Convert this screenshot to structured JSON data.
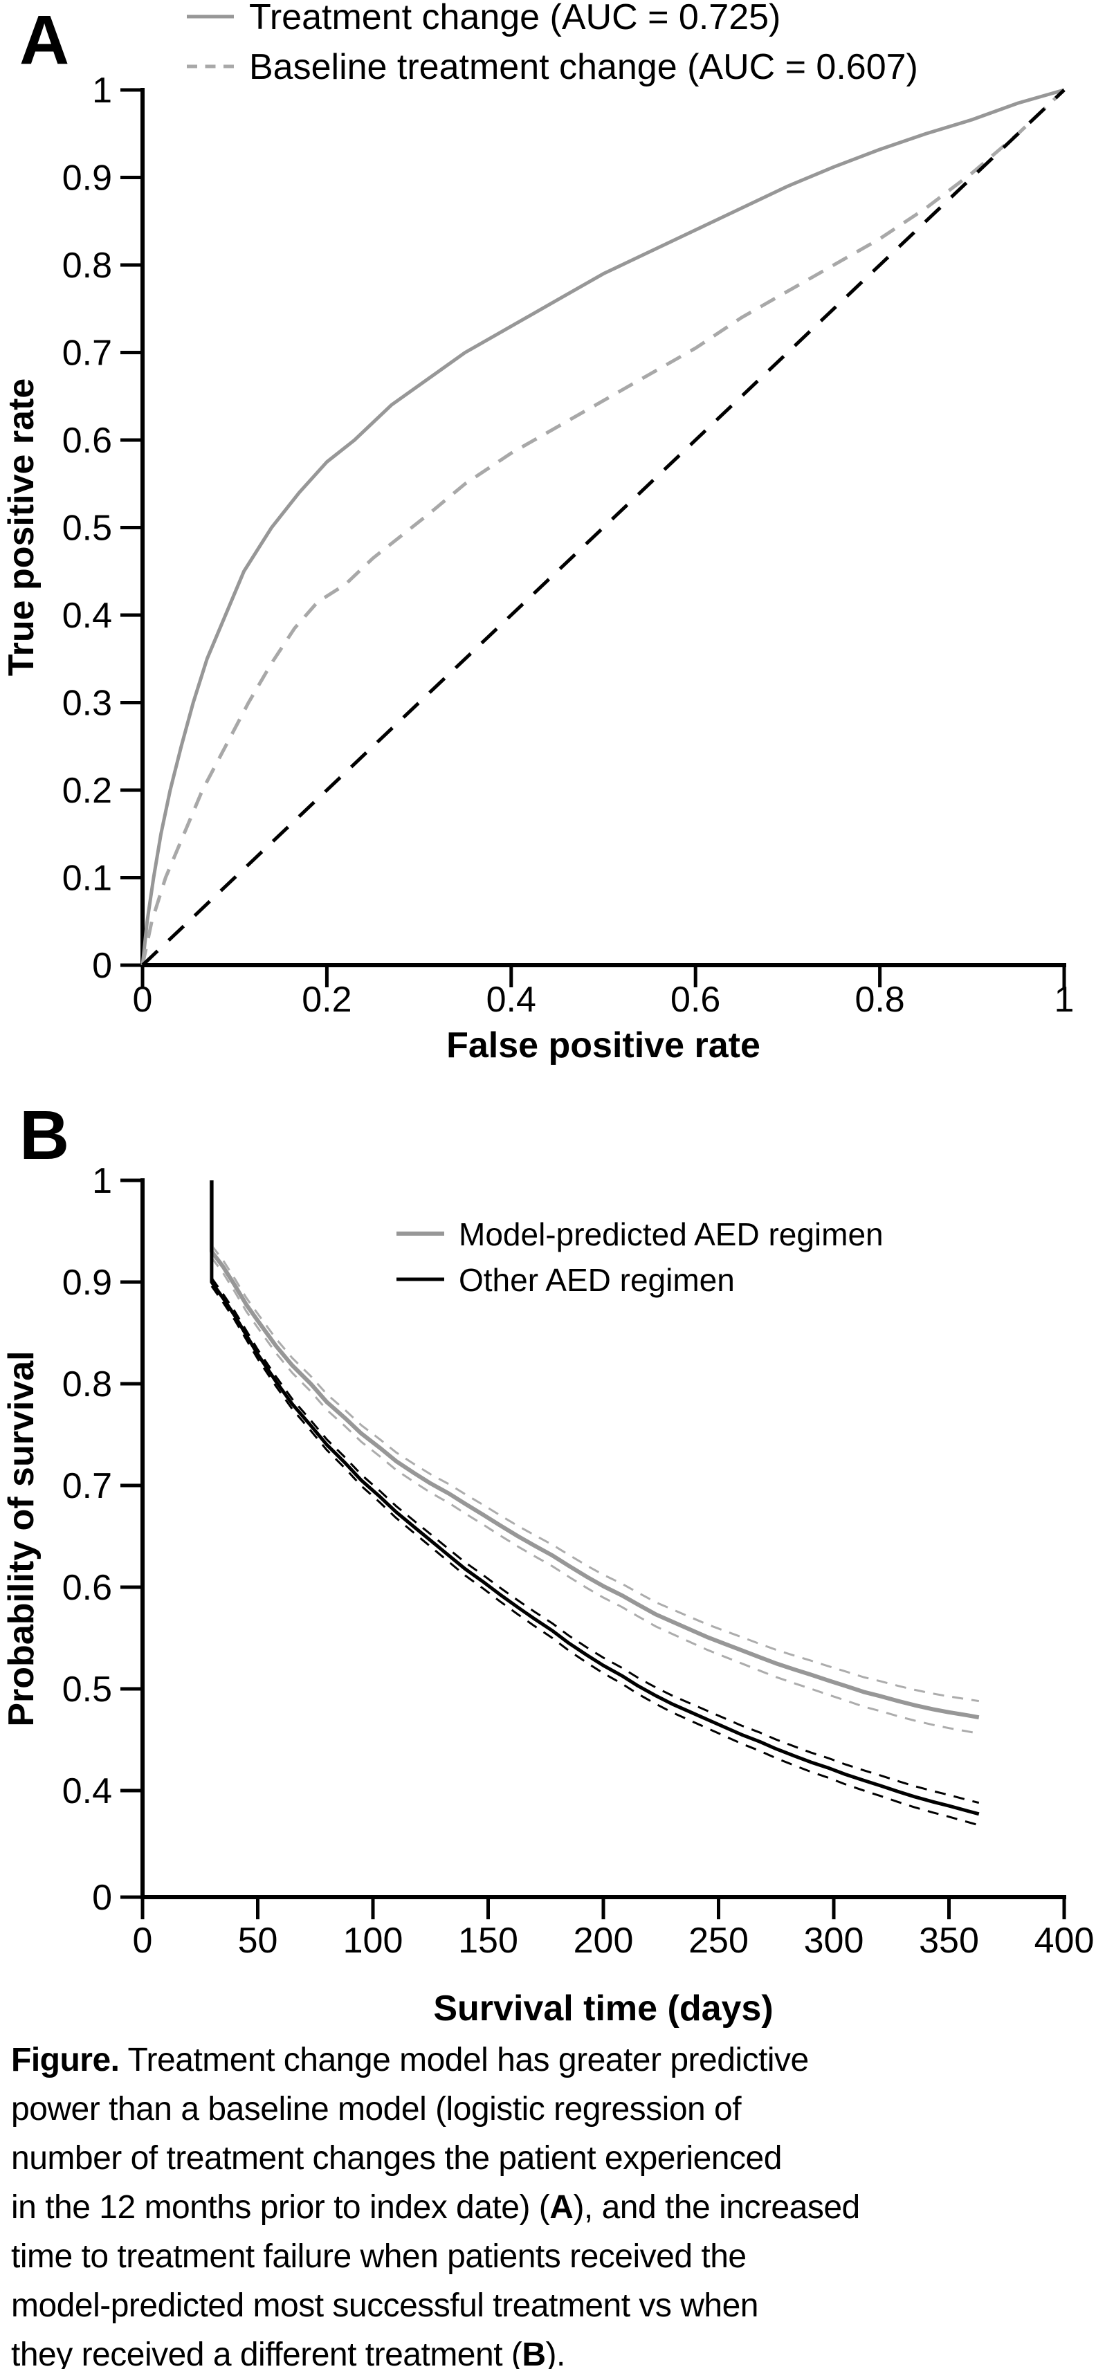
{
  "panels": {
    "a": {
      "letter": "A"
    },
    "b": {
      "letter": "B"
    }
  },
  "chart_data": [
    {
      "id": "roc",
      "type": "line",
      "title": "",
      "xlabel": "False positive rate",
      "ylabel": "True positive rate",
      "xlim": [
        0,
        1
      ],
      "ylim": [
        0,
        1
      ],
      "grid": false,
      "legend_position": "top-left-above-plot",
      "xtick_values": [
        0,
        0.2,
        0.4,
        0.6,
        0.8,
        1
      ],
      "xtick_labels": [
        "0",
        "0.2",
        "0.4",
        "0.6",
        "0.8",
        "1"
      ],
      "ytick_values": [
        0,
        0.1,
        0.2,
        0.3,
        0.4,
        0.5,
        0.6,
        0.7,
        0.8,
        0.9,
        1
      ],
      "ytick_labels": [
        "0",
        "0.1",
        "0.2",
        "0.3",
        "0.4",
        "0.5",
        "0.6",
        "0.7",
        "0.8",
        "0.9",
        "1"
      ],
      "series": [
        {
          "name": "Treatment change (AUC = 0.725)",
          "auc": 0.725,
          "style": "solid",
          "color": "#979797",
          "points": [
            [
              0,
              0
            ],
            [
              0.005,
              0.05
            ],
            [
              0.012,
              0.1
            ],
            [
              0.02,
              0.15
            ],
            [
              0.03,
              0.2
            ],
            [
              0.042,
              0.25
            ],
            [
              0.055,
              0.3
            ],
            [
              0.07,
              0.35
            ],
            [
              0.09,
              0.4
            ],
            [
              0.11,
              0.45
            ],
            [
              0.14,
              0.5
            ],
            [
              0.17,
              0.54
            ],
            [
              0.2,
              0.575
            ],
            [
              0.23,
              0.6
            ],
            [
              0.27,
              0.64
            ],
            [
              0.31,
              0.67
            ],
            [
              0.35,
              0.7
            ],
            [
              0.4,
              0.73
            ],
            [
              0.45,
              0.76
            ],
            [
              0.5,
              0.79
            ],
            [
              0.55,
              0.815
            ],
            [
              0.6,
              0.84
            ],
            [
              0.65,
              0.865
            ],
            [
              0.7,
              0.89
            ],
            [
              0.75,
              0.912
            ],
            [
              0.8,
              0.932
            ],
            [
              0.85,
              0.95
            ],
            [
              0.9,
              0.966
            ],
            [
              0.95,
              0.985
            ],
            [
              1,
              1
            ]
          ]
        },
        {
          "name": "Baseline treatment change (AUC = 0.607)",
          "auc": 0.607,
          "style": "dashed",
          "color": "#a8a8a8",
          "points": [
            [
              0,
              0
            ],
            [
              0.01,
              0.05
            ],
            [
              0.025,
              0.1
            ],
            [
              0.045,
              0.15
            ],
            [
              0.065,
              0.2
            ],
            [
              0.09,
              0.25
            ],
            [
              0.115,
              0.3
            ],
            [
              0.14,
              0.345
            ],
            [
              0.165,
              0.385
            ],
            [
              0.19,
              0.415
            ],
            [
              0.22,
              0.435
            ],
            [
              0.25,
              0.465
            ],
            [
              0.28,
              0.49
            ],
            [
              0.31,
              0.515
            ],
            [
              0.35,
              0.55
            ],
            [
              0.4,
              0.585
            ],
            [
              0.45,
              0.615
            ],
            [
              0.5,
              0.645
            ],
            [
              0.55,
              0.675
            ],
            [
              0.6,
              0.705
            ],
            [
              0.65,
              0.74
            ],
            [
              0.7,
              0.77
            ],
            [
              0.75,
              0.8
            ],
            [
              0.8,
              0.83
            ],
            [
              0.85,
              0.865
            ],
            [
              0.9,
              0.905
            ],
            [
              0.95,
              0.95
            ],
            [
              1,
              1
            ]
          ]
        },
        {
          "name": "chance-diagonal",
          "style": "dashed",
          "color": "#000000",
          "points": [
            [
              0,
              0
            ],
            [
              1,
              1
            ]
          ]
        }
      ]
    },
    {
      "id": "km",
      "type": "line",
      "title": "",
      "xlabel": "Survival time (days)",
      "ylabel": "Probability of survival",
      "xlim": [
        0,
        400
      ],
      "ylim": [
        0,
        1
      ],
      "y_axis_note": "broken axis: 0.4 to 1 linear, 0 shown at origin",
      "grid": false,
      "legend_position": "top-right-inside",
      "xtick_values": [
        0,
        50,
        100,
        150,
        200,
        250,
        300,
        350,
        400
      ],
      "xtick_labels": [
        "0",
        "50",
        "100",
        "150",
        "200",
        "250",
        "300",
        "350",
        "400"
      ],
      "ytick_values": [
        1,
        0.9,
        0.8,
        0.7,
        0.6,
        0.5,
        0.4,
        0
      ],
      "ytick_labels": [
        "1",
        "0.9",
        "0.8",
        "0.7",
        "0.6",
        "0.5",
        "0.4",
        "0"
      ],
      "series": [
        {
          "name": "Model-predicted AED regimen",
          "style": "solid",
          "color": "#979797",
          "ci_color": "#acacac",
          "ci_halfwidth": {
            "start": 0.006,
            "end": 0.016
          },
          "points": [
            [
              30,
              1
            ],
            [
              30,
              0.93
            ],
            [
              35,
              0.915
            ],
            [
              40,
              0.897
            ],
            [
              45,
              0.878
            ],
            [
              50,
              0.862
            ],
            [
              58,
              0.837
            ],
            [
              65,
              0.818
            ],
            [
              73,
              0.8
            ],
            [
              80,
              0.782
            ],
            [
              88,
              0.766
            ],
            [
              95,
              0.751
            ],
            [
              103,
              0.737
            ],
            [
              110,
              0.724
            ],
            [
              118,
              0.712
            ],
            [
              125,
              0.702
            ],
            [
              133,
              0.692
            ],
            [
              140,
              0.682
            ],
            [
              148,
              0.671
            ],
            [
              155,
              0.661
            ],
            [
              163,
              0.65
            ],
            [
              170,
              0.641
            ],
            [
              178,
              0.631
            ],
            [
              185,
              0.621
            ],
            [
              193,
              0.61
            ],
            [
              200,
              0.601
            ],
            [
              208,
              0.592
            ],
            [
              215,
              0.583
            ],
            [
              223,
              0.573
            ],
            [
              230,
              0.566
            ],
            [
              238,
              0.558
            ],
            [
              245,
              0.551
            ],
            [
              253,
              0.544
            ],
            [
              260,
              0.538
            ],
            [
              268,
              0.531
            ],
            [
              275,
              0.525
            ],
            [
              283,
              0.519
            ],
            [
              290,
              0.514
            ],
            [
              298,
              0.508
            ],
            [
              305,
              0.503
            ],
            [
              313,
              0.497
            ],
            [
              320,
              0.493
            ],
            [
              328,
              0.488
            ],
            [
              335,
              0.484
            ],
            [
              343,
              0.48
            ],
            [
              350,
              0.477
            ],
            [
              358,
              0.474
            ],
            [
              363,
              0.472
            ]
          ]
        },
        {
          "name": "Other AED regimen",
          "style": "solid",
          "color": "#000000",
          "ci_color": "#000000",
          "ci_halfwidth": {
            "start": 0.004,
            "end": 0.011
          },
          "points": [
            [
              30,
              1
            ],
            [
              30,
              0.9
            ],
            [
              35,
              0.884
            ],
            [
              40,
              0.867
            ],
            [
              45,
              0.848
            ],
            [
              50,
              0.829
            ],
            [
              58,
              0.802
            ],
            [
              65,
              0.78
            ],
            [
              73,
              0.759
            ],
            [
              80,
              0.74
            ],
            [
              88,
              0.722
            ],
            [
              95,
              0.705
            ],
            [
              103,
              0.689
            ],
            [
              110,
              0.674
            ],
            [
              118,
              0.659
            ],
            [
              125,
              0.646
            ],
            [
              133,
              0.631
            ],
            [
              140,
              0.618
            ],
            [
              148,
              0.605
            ],
            [
              155,
              0.593
            ],
            [
              163,
              0.58
            ],
            [
              170,
              0.569
            ],
            [
              178,
              0.557
            ],
            [
              185,
              0.545
            ],
            [
              193,
              0.533
            ],
            [
              200,
              0.523
            ],
            [
              208,
              0.513
            ],
            [
              215,
              0.503
            ],
            [
              223,
              0.493
            ],
            [
              230,
              0.485
            ],
            [
              238,
              0.477
            ],
            [
              245,
              0.47
            ],
            [
              253,
              0.462
            ],
            [
              260,
              0.455
            ],
            [
              268,
              0.448
            ],
            [
              275,
              0.441
            ],
            [
              283,
              0.434
            ],
            [
              290,
              0.428
            ],
            [
              298,
              0.422
            ],
            [
              305,
              0.416
            ],
            [
              313,
              0.41
            ],
            [
              320,
              0.405
            ],
            [
              328,
              0.399
            ],
            [
              335,
              0.394
            ],
            [
              343,
              0.389
            ],
            [
              350,
              0.385
            ],
            [
              358,
              0.38
            ],
            [
              363,
              0.377
            ]
          ]
        }
      ]
    }
  ],
  "caption": {
    "lines": [
      [
        {
          "t": "Figure.",
          "b": true
        },
        {
          "t": " Treatment change model has greater predictive"
        }
      ],
      [
        {
          "t": "power than a baseline model (logistic regression of"
        }
      ],
      [
        {
          "t": "number of treatment changes the patient experienced"
        }
      ],
      [
        {
          "t": "in the 12 months prior to index date) ("
        },
        {
          "t": "A",
          "b": true
        },
        {
          "t": "), and the increased"
        }
      ],
      [
        {
          "t": "time to treatment failure when patients received the"
        }
      ],
      [
        {
          "t": "model-predicted most successful treatment vs when"
        }
      ],
      [
        {
          "t": "they received a different treatment ("
        },
        {
          "t": "B",
          "b": true
        },
        {
          "t": ")."
        }
      ]
    ]
  }
}
